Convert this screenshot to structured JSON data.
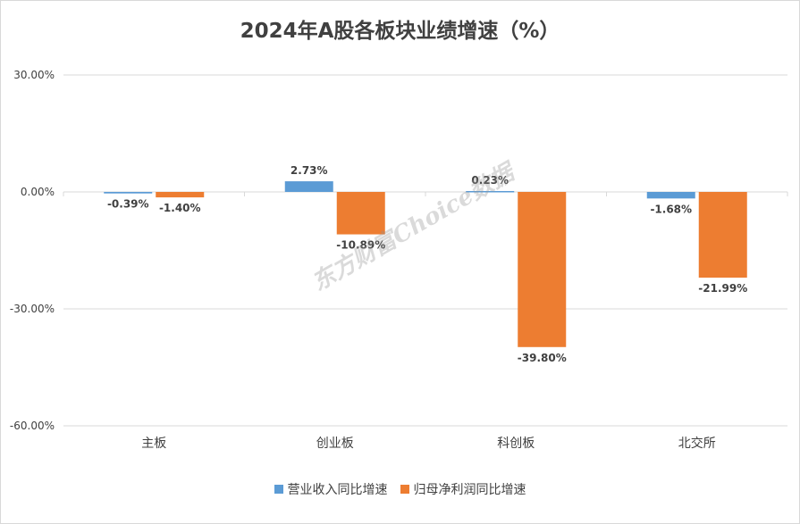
{
  "chart_data": {
    "type": "bar",
    "title": "2024年A股各板块业绩增速（%）",
    "categories": [
      "主板",
      "创业板",
      "科创板",
      "北交所"
    ],
    "series": [
      {
        "name": "营业收入同比增速",
        "values": [
          -0.39,
          2.73,
          0.23,
          -1.68
        ],
        "labels": [
          "-0.39%",
          "2.73%",
          "0.23%",
          "-1.68%"
        ],
        "color": "#5b9bd5"
      },
      {
        "name": "归母净利润同比增速",
        "values": [
          -1.4,
          -10.89,
          -39.8,
          -21.99
        ],
        "labels": [
          "-1.40%",
          "-10.89%",
          "-39.80%",
          "-21.99%"
        ],
        "color": "#ed7d31"
      }
    ],
    "ylim": [
      -60,
      30
    ],
    "yticks": [
      30,
      0,
      -30,
      -60
    ],
    "ytick_labels": [
      "30.00%",
      "0.00%",
      "-30.00%",
      "-60.00%"
    ],
    "grid": true,
    "legend": "bottom"
  },
  "watermark": "东方财富Choice数据"
}
